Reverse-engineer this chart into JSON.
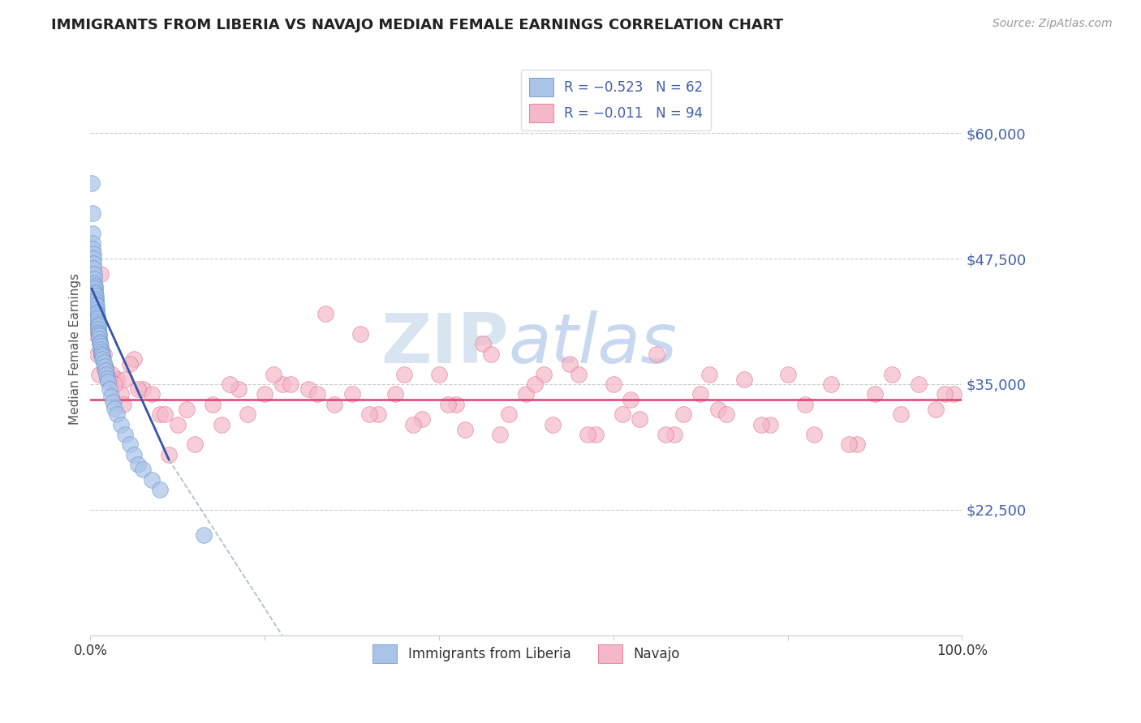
{
  "title": "IMMIGRANTS FROM LIBERIA VS NAVAJO MEDIAN FEMALE EARNINGS CORRELATION CHART",
  "source": "Source: ZipAtlas.com",
  "ylabel": "Median Female Earnings",
  "xlim": [
    0,
    100
  ],
  "ylim": [
    10000,
    67000
  ],
  "yticks": [
    22500,
    35000,
    47500,
    60000
  ],
  "ytick_labels": [
    "$22,500",
    "$35,000",
    "$47,500",
    "$60,000"
  ],
  "xticks": [
    0,
    20,
    40,
    60,
    80,
    100
  ],
  "xtick_labels": [
    "0.0%",
    "",
    "",
    "",
    "",
    "100.0%"
  ],
  "blue_R": "R = −0.523",
  "blue_N": "N = 62",
  "pink_R": "R = −0.011",
  "pink_N": "N = 94",
  "blue_color": "#aac4e8",
  "blue_edge": "#5588cc",
  "pink_color": "#f4b8c8",
  "pink_edge": "#e06080",
  "blue_line_color": "#3355aa",
  "pink_line_color": "#e04070",
  "dashed_line_color": "#aabbcc",
  "grid_color": "#cccccc",
  "title_color": "#222222",
  "axis_label_color": "#4060b0",
  "source_color": "#999999",
  "blue_scatter_x": [
    0.15,
    0.2,
    0.22,
    0.25,
    0.28,
    0.3,
    0.32,
    0.35,
    0.38,
    0.4,
    0.42,
    0.45,
    0.48,
    0.5,
    0.52,
    0.55,
    0.58,
    0.6,
    0.62,
    0.65,
    0.68,
    0.7,
    0.72,
    0.75,
    0.78,
    0.8,
    0.82,
    0.85,
    0.88,
    0.9,
    0.92,
    0.95,
    0.98,
    1.0,
    1.05,
    1.1,
    1.15,
    1.2,
    1.25,
    1.3,
    1.35,
    1.4,
    1.5,
    1.6,
    1.7,
    1.8,
    1.9,
    2.0,
    2.2,
    2.4,
    2.6,
    2.8,
    3.0,
    3.5,
    4.0,
    4.5,
    5.0,
    5.5,
    6.0,
    7.0,
    8.0,
    13.0
  ],
  "blue_scatter_y": [
    55000,
    52000,
    50000,
    49000,
    48500,
    48000,
    47500,
    47000,
    46500,
    46000,
    45500,
    45000,
    44800,
    44500,
    44200,
    44000,
    43800,
    43500,
    43200,
    43000,
    42800,
    42500,
    42200,
    42000,
    41800,
    41500,
    41200,
    41000,
    40800,
    40500,
    40200,
    40000,
    39800,
    39500,
    39200,
    39000,
    38800,
    38500,
    38200,
    38000,
    37800,
    37500,
    37200,
    36800,
    36400,
    36000,
    35600,
    35200,
    34500,
    33800,
    33200,
    32600,
    32000,
    31000,
    30000,
    29000,
    28000,
    27000,
    26500,
    25500,
    24500,
    20000
  ],
  "pink_scatter_x": [
    0.3,
    0.5,
    0.6,
    0.8,
    1.0,
    1.2,
    1.5,
    1.8,
    2.0,
    2.5,
    3.0,
    3.5,
    4.0,
    5.0,
    6.0,
    7.0,
    8.0,
    10.0,
    12.0,
    15.0,
    18.0,
    20.0,
    22.0,
    25.0,
    28.0,
    30.0,
    33.0,
    35.0,
    38.0,
    40.0,
    42.0,
    45.0,
    48.0,
    50.0,
    52.0,
    55.0,
    58.0,
    60.0,
    62.0,
    65.0,
    68.0,
    70.0,
    72.0,
    75.0,
    78.0,
    80.0,
    82.0,
    85.0,
    88.0,
    90.0,
    92.0,
    95.0,
    97.0,
    99.0,
    1.3,
    1.6,
    2.2,
    2.8,
    3.8,
    5.5,
    8.5,
    11.0,
    14.0,
    17.0,
    23.0,
    27.0,
    32.0,
    37.0,
    43.0,
    47.0,
    53.0,
    57.0,
    63.0,
    67.0,
    73.0,
    77.0,
    83.0,
    87.0,
    93.0,
    98.0,
    4.5,
    9.0,
    16.0,
    21.0,
    26.0,
    31.0,
    36.0,
    41.0,
    46.0,
    51.0,
    56.0,
    61.0,
    66.0,
    71.0
  ],
  "pink_scatter_y": [
    46000,
    43000,
    40000,
    38000,
    36000,
    46000,
    38000,
    36500,
    35500,
    36000,
    35500,
    34000,
    35500,
    37500,
    34500,
    34000,
    32000,
    31000,
    29000,
    31000,
    32000,
    34000,
    35000,
    34500,
    33000,
    34000,
    32000,
    34000,
    31500,
    36000,
    33000,
    39000,
    32000,
    34000,
    36000,
    37000,
    30000,
    35000,
    33500,
    38000,
    32000,
    34000,
    32500,
    35500,
    31000,
    36000,
    33000,
    35000,
    29000,
    34000,
    36000,
    35000,
    32500,
    34000,
    38000,
    36500,
    35500,
    35000,
    33000,
    34500,
    32000,
    32500,
    33000,
    34500,
    35000,
    42000,
    32000,
    31000,
    30500,
    30000,
    31000,
    30000,
    31500,
    30000,
    32000,
    31000,
    30000,
    29000,
    32000,
    34000,
    37000,
    28000,
    35000,
    36000,
    34000,
    40000,
    36000,
    33000,
    38000,
    35000,
    36000,
    32000,
    30000,
    36000
  ],
  "blue_line_x": [
    0.15,
    9.0
  ],
  "blue_line_y": [
    44500,
    27500
  ],
  "dash_line_x": [
    9.0,
    22.0
  ],
  "dash_line_y": [
    27500,
    10000
  ],
  "pink_line_y": 33500
}
